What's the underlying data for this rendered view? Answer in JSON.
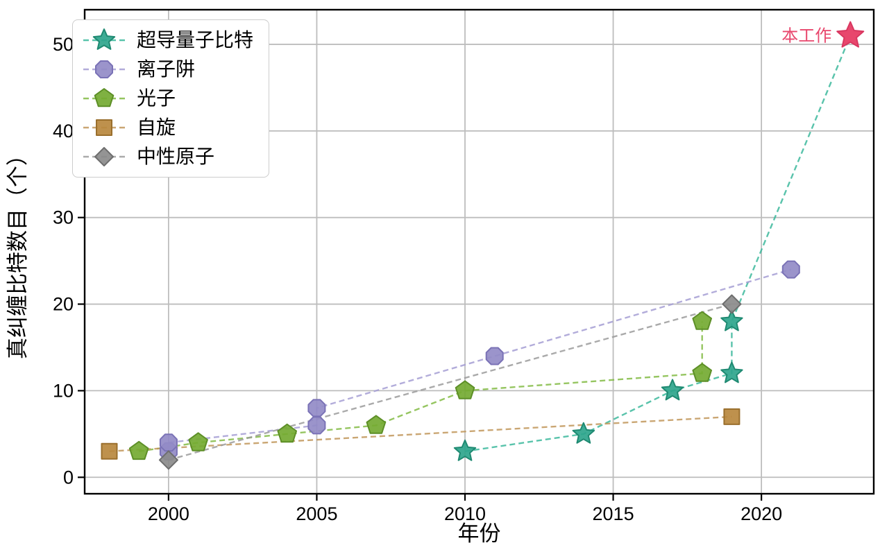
{
  "chart_data": {
    "type": "scatter",
    "title": "",
    "xlabel": "年份",
    "ylabel": "真纠缠比特数目（个）",
    "xlim": [
      1997.17,
      2023.79
    ],
    "ylim": [
      -1.9,
      54.0
    ],
    "x_ticks": [
      2000,
      2005,
      2010,
      2015,
      2020
    ],
    "y_ticks": [
      0,
      10,
      20,
      30,
      40,
      50
    ],
    "grid": true,
    "grid_color": "#bdbdbd",
    "spine_color": "#000000",
    "legend_position": "upper-left",
    "line_style": "dashed",
    "series": [
      {
        "name": "超导量子比特",
        "marker": "star",
        "fill": "#2ea58c",
        "edge": "#1f8a72",
        "line_color": "#3cb89c",
        "points": [
          [
            2010,
            3
          ],
          [
            2014,
            5
          ],
          [
            2017,
            10
          ],
          [
            2019,
            12
          ],
          [
            2019,
            18
          ]
        ],
        "line_to_annotation": true
      },
      {
        "name": "离子阱",
        "marker": "octagon",
        "fill": "#928bc7",
        "edge": "#7a72b6",
        "line_color": "#a49dd3",
        "points": [
          [
            2000,
            3
          ],
          [
            2000,
            4
          ],
          [
            2005,
            6
          ],
          [
            2005,
            8
          ],
          [
            2011,
            14
          ],
          [
            2021,
            24
          ]
        ],
        "line_to_annotation": false
      },
      {
        "name": "光子",
        "marker": "pentagon",
        "fill": "#74aa32",
        "edge": "#5d8f27",
        "line_color": "#83bb44",
        "points": [
          [
            1999,
            3
          ],
          [
            2001,
            4
          ],
          [
            2004,
            5
          ],
          [
            2007,
            6
          ],
          [
            2010,
            10
          ],
          [
            2018,
            12
          ],
          [
            2018,
            18
          ]
        ],
        "line_to_annotation": false
      },
      {
        "name": "自旋",
        "marker": "square",
        "fill": "#b9883e",
        "edge": "#9a6f2d",
        "line_color": "#c1965a",
        "points": [
          [
            1998,
            3
          ],
          [
            2019,
            7
          ]
        ],
        "line_to_annotation": false
      },
      {
        "name": "中性原子",
        "marker": "diamond",
        "fill": "#8b8b8b",
        "edge": "#6e6e6e",
        "line_color": "#9b9b9b",
        "points": [
          [
            2000,
            2
          ],
          [
            2019,
            20
          ]
        ],
        "line_to_annotation": false
      }
    ],
    "annotation": {
      "label": "本工作",
      "x": 2023,
      "y": 51,
      "marker": "star",
      "fill": "#e8476d",
      "edge": "#d93760"
    }
  }
}
